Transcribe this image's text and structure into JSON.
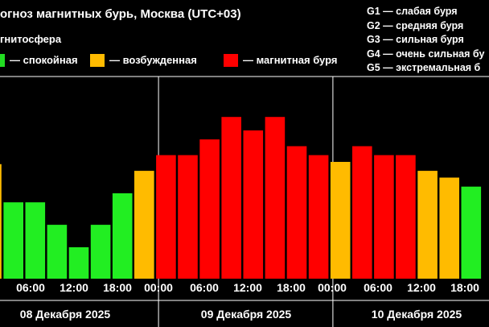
{
  "title": "огноз магнитных бурь, Москва (UTC+03)",
  "subtitle": "гнитосфера",
  "legend_status": [
    {
      "label": "— спокойная",
      "color": "#22dd22",
      "name": "legend-calm"
    },
    {
      "label": "— возбужденная",
      "color": "#ffbb00",
      "name": "legend-excited"
    },
    {
      "label": "— магнитная буря",
      "color": "#ff0000",
      "name": "legend-storm"
    }
  ],
  "legend_g": [
    "G1 — слабая буря",
    "G2 — средняя буря",
    "G3 — сильная буря",
    "G4 — очень сильная бу",
    "G5 — экстремальная б"
  ],
  "colors": {
    "calm": "#22ee22",
    "excited": "#ffbb00",
    "storm": "#ff0000",
    "grid": "#ffffff",
    "background": "#000000"
  },
  "chart_data": {
    "type": "bar",
    "ylim": [
      0,
      9
    ],
    "grid": false,
    "x_tick_labels": [
      "06:00",
      "12:00",
      "18:00",
      "00:00",
      "06:00",
      "12:00",
      "18:00",
      "00:00",
      "06:00",
      "12:00",
      "18:00"
    ],
    "day_labels": [
      "08 Декабря 2025",
      "09 Декабря 2025",
      "10 Декабря 2025"
    ],
    "bars": [
      {
        "value": 5.1,
        "status": "excited"
      },
      {
        "value": 3.4,
        "status": "calm"
      },
      {
        "value": 3.4,
        "status": "calm"
      },
      {
        "value": 2.4,
        "status": "calm"
      },
      {
        "value": 1.4,
        "status": "calm"
      },
      {
        "value": 2.4,
        "status": "calm"
      },
      {
        "value": 3.8,
        "status": "calm"
      },
      {
        "value": 4.8,
        "status": "excited"
      },
      {
        "value": 5.5,
        "status": "storm"
      },
      {
        "value": 5.5,
        "status": "storm"
      },
      {
        "value": 6.2,
        "status": "storm"
      },
      {
        "value": 7.2,
        "status": "storm"
      },
      {
        "value": 6.6,
        "status": "storm"
      },
      {
        "value": 7.2,
        "status": "storm"
      },
      {
        "value": 5.9,
        "status": "storm"
      },
      {
        "value": 5.5,
        "status": "storm"
      },
      {
        "value": 5.2,
        "status": "excited"
      },
      {
        "value": 5.9,
        "status": "storm"
      },
      {
        "value": 5.5,
        "status": "storm"
      },
      {
        "value": 5.5,
        "status": "storm"
      },
      {
        "value": 4.8,
        "status": "excited"
      },
      {
        "value": 4.5,
        "status": "excited"
      },
      {
        "value": 4.1,
        "status": "calm"
      }
    ]
  }
}
